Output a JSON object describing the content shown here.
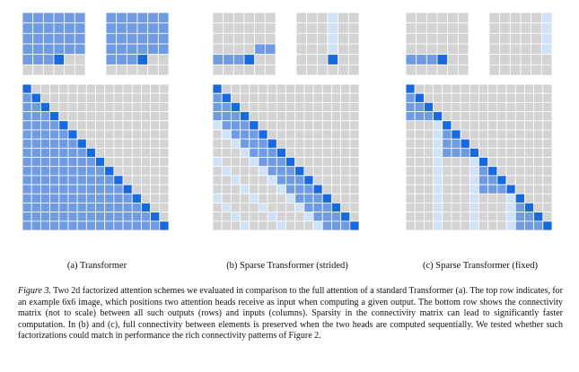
{
  "figure": {
    "subcaptions": [
      "(a) Transformer",
      "(b) Sparse Transformer (strided)",
      "(c) Sparse Transformer (fixed)"
    ],
    "caption_label": "Figure 3.",
    "caption_text": " Two 2d factorized attention schemes we evaluated in comparison to the full attention of a standard Transformer (a). The top row indicates, for an example 6x6 image, which positions two attention heads receive as input when computing a given output. The bottom row shows the connectivity matrix (not to scale) between all such outputs (rows) and inputs (columns). Sparsity in the connectivity matrix can lead to significantly faster computation. In (b) and (c), full connectivity between elements is preserved when the two heads are computed sequentially. We tested whether such factorizations could match in performance the rich connectivity patterns of Figure 2."
  },
  "colors": {
    "background_cell": "#d3d3d3",
    "grid_line": "#ffffff",
    "attended_cell": "#6f9be3",
    "output_cell": "#1769e0",
    "secondary_head_cell": "#cfe2f8"
  },
  "grid_sizes": {
    "small": 6,
    "large": 16
  },
  "patterns": [
    "full",
    "strided",
    "fixed"
  ]
}
